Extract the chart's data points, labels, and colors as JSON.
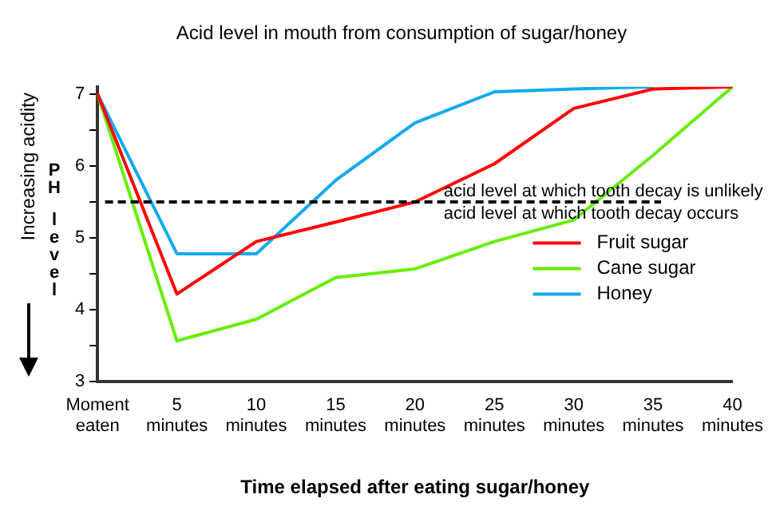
{
  "chart_data": {
    "type": "line",
    "title": "Acid level in mouth from consumption of sugar/honey",
    "xlabel": "Time elapsed after eating sugar/honey",
    "ylabel": "PH level",
    "categories": [
      "Moment eaten",
      "5 minutes",
      "10 minutes",
      "15 minutes",
      "20 minutes",
      "25 minutes",
      "30 minutes",
      "35 minutes",
      "40 minutes"
    ],
    "series": [
      {
        "name": "Fruit sugar",
        "color": "#ff0000",
        "values": [
          7,
          4.22,
          4.95,
          5.22,
          5.5,
          6.03,
          6.8,
          7.07,
          7.1
        ]
      },
      {
        "name": "Cane sugar",
        "color": "#66ee00",
        "values": [
          7,
          3.57,
          3.87,
          4.45,
          4.57,
          4.95,
          5.25,
          6.15,
          7.1
        ]
      },
      {
        "name": "Honey",
        "color": "#11aaee",
        "values": [
          7,
          4.78,
          4.78,
          5.8,
          6.6,
          7.03,
          7.07,
          7.1,
          null
        ]
      }
    ],
    "ylim": [
      3,
      7.1
    ],
    "yticks": [
      3,
      {
        "value": 3.5,
        "label": null
      },
      4,
      {
        "value": 4.5,
        "label": null
      },
      5,
      {
        "value": 5.5,
        "label": null
      },
      6,
      {
        "value": 6.5,
        "label": null
      },
      7
    ],
    "ref_lines": [
      {
        "axis": "y",
        "value": 5.5,
        "label": "acid level at which tooth decay is unlikely",
        "color": "#000000",
        "line_style": "dashed"
      }
    ],
    "annotations": [
      {
        "text": "acid level at which tooth decay occurs",
        "y": 5.5
      },
      "Increasing acidity"
    ],
    "grid": false,
    "legend": "bottom right",
    "marker": "none",
    "line_style": "solid"
  }
}
